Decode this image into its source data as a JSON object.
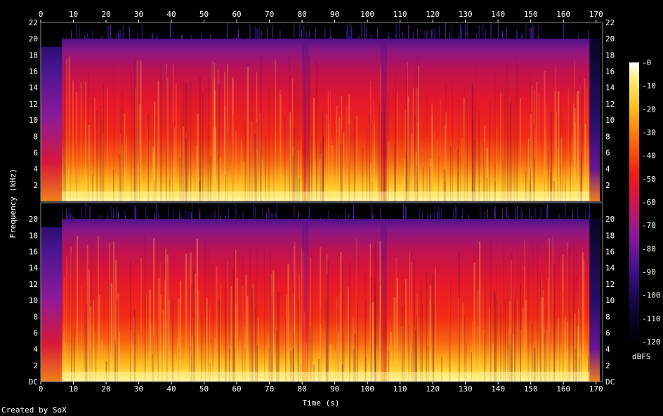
{
  "chart_data": {
    "type": "heatmap",
    "title": "",
    "xlabel": "Time (s)",
    "ylabel": "Frequency (kHz)",
    "xlim": [
      0,
      172
    ],
    "ylim": [
      0,
      22
    ],
    "x_ticks": [
      "0",
      "10",
      "20",
      "30",
      "40",
      "50",
      "60",
      "70",
      "80",
      "90",
      "100",
      "110",
      "120",
      "130",
      "140",
      "150",
      "160",
      "170"
    ],
    "y_ticks_top": [
      "2",
      "4",
      "6",
      "8",
      "10",
      "12",
      "14",
      "16",
      "18",
      "20",
      "22"
    ],
    "y_ticks_bottom": [
      "DC",
      "2",
      "4",
      "6",
      "8",
      "10",
      "12",
      "14",
      "16",
      "18",
      "20"
    ],
    "channels": 2,
    "colorbar": {
      "label": "dBFS",
      "ticks": [
        "-0",
        "-10",
        "-20",
        "-30",
        "-40",
        "-50",
        "-60",
        "-70",
        "-80",
        "-90",
        "-100",
        "-110",
        "-120"
      ],
      "range": [
        -120,
        0
      ]
    },
    "audio_start_s": 6.5,
    "audio_end_s": 168,
    "intro_band_top_khz": 19,
    "music_band_top_khz": 20,
    "quiet_sections_s": [
      [
        104,
        106
      ],
      [
        80,
        82
      ]
    ],
    "credit": "Created by SoX"
  }
}
